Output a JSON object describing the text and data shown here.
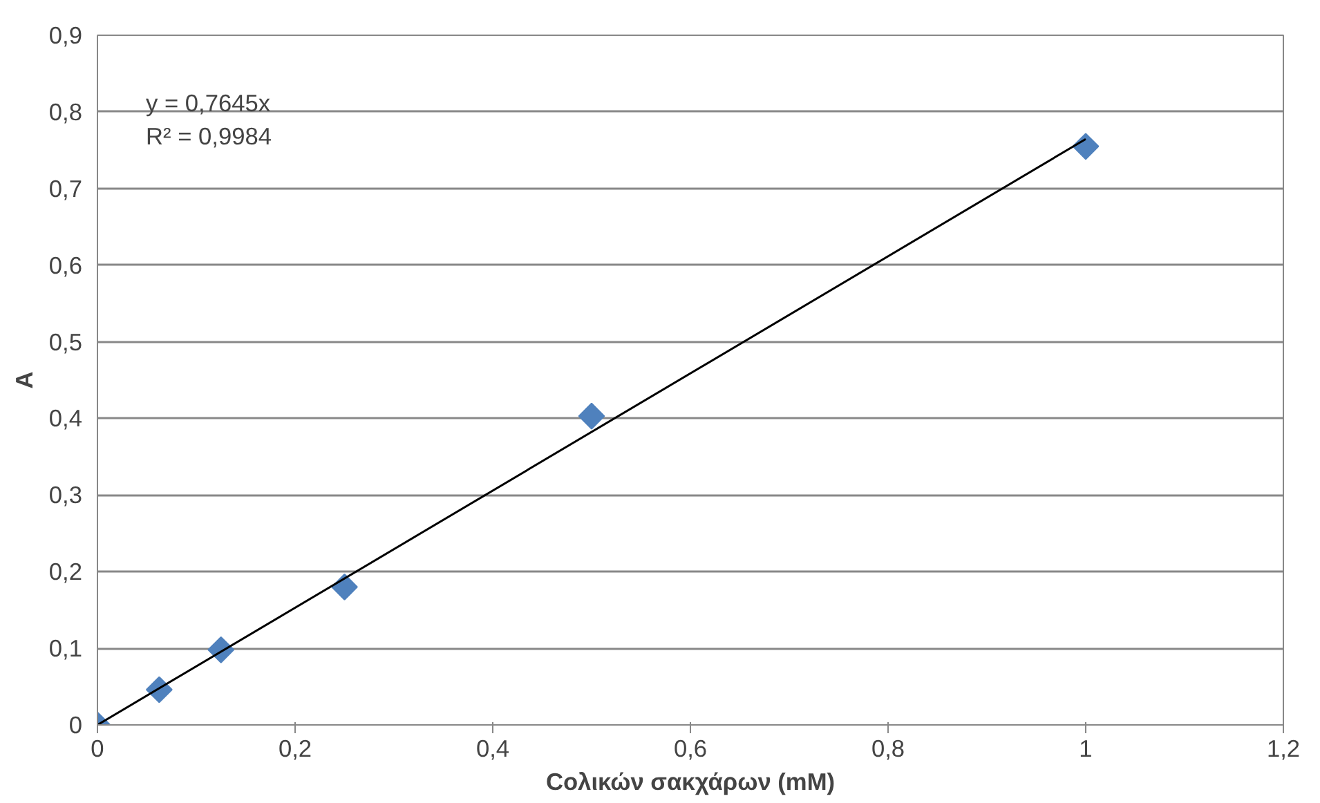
{
  "chart_data": {
    "type": "scatter",
    "xlabel": "Cολικών σακχάρων (mM)",
    "ylabel": "A",
    "series": [
      {
        "color": "#4f81bd",
        "x": [
          0,
          0.0625,
          0.125,
          0.25,
          0.5,
          1
        ],
        "values": [
          0,
          0.046,
          0.098,
          0.18,
          0.403,
          0.755
        ],
        "marker": "diamond"
      },
      {
        "type": "line",
        "color": "#000000",
        "x": [
          0,
          1
        ],
        "values": [
          0,
          0.7645
        ],
        "marker": "none",
        "line_style": "solid"
      }
    ],
    "annotations": [
      "y = 0,7645x",
      "R² = 0,9984"
    ],
    "xlim": [
      0,
      1.2
    ],
    "xticks": [
      0,
      {
        "value": 0.2,
        "label": "0,2"
      },
      {
        "value": 0.4,
        "label": "0,4"
      },
      {
        "value": 0.6,
        "label": "0,6"
      },
      {
        "value": 0.8,
        "label": "0,8"
      },
      1,
      {
        "value": 1.2,
        "label": "1,2"
      }
    ],
    "ylim": [
      0,
      0.9
    ],
    "yticks": [
      0,
      {
        "value": 0.1,
        "label": "0,1"
      },
      {
        "value": 0.2,
        "label": "0,2"
      },
      {
        "value": 0.3,
        "label": "0,3"
      },
      {
        "value": 0.4,
        "label": "0,4"
      },
      {
        "value": 0.5,
        "label": "0,5"
      },
      {
        "value": 0.6,
        "label": "0,6"
      },
      {
        "value": 0.7,
        "label": "0,7"
      },
      {
        "value": 0.8,
        "label": "0,8"
      },
      {
        "value": 0.9,
        "label": "0,9"
      }
    ],
    "grid": "y"
  }
}
